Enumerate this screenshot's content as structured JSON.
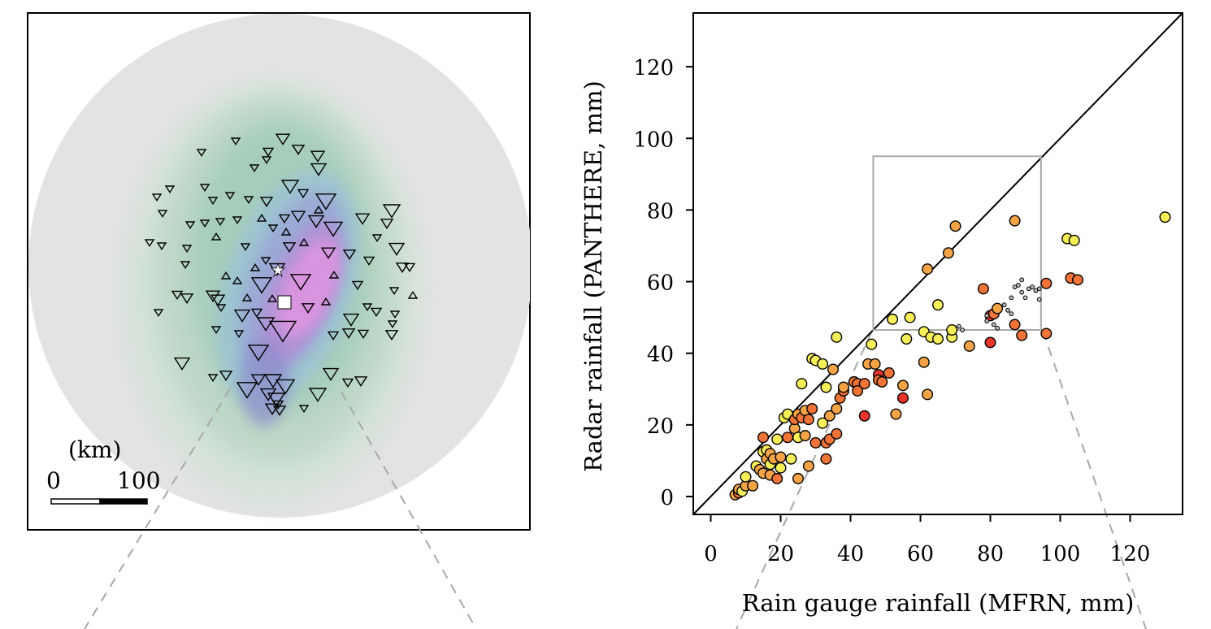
{
  "map_panel": {
    "scale_unit": "(km)",
    "scale_start": "0",
    "scale_end": "100",
    "station_marker_color": "#000000",
    "background_color": "#e3e3e3"
  },
  "chart_data": {
    "type": "scatter",
    "title": "",
    "xlabel": "Rain gauge rainfall (MFRN, mm)",
    "ylabel": "Radar rainfall (PANTHERE, mm)",
    "xlim": [
      -5,
      135
    ],
    "ylim": [
      -5,
      135
    ],
    "xticks": [
      0,
      20,
      40,
      60,
      80,
      100,
      120
    ],
    "yticks": [
      0,
      20,
      40,
      60,
      80,
      100,
      120
    ],
    "grid": false,
    "reference_line": "1:1",
    "zoom_box": {
      "x": [
        46.5,
        94.5
      ],
      "y": [
        46.5,
        95
      ]
    },
    "colors": {
      "yellow": "#f7ef5a",
      "orange": "#f4a447",
      "dark_orange": "#f07338",
      "red": "#e8342a",
      "small_points": "#bdbdbd"
    },
    "points": [
      {
        "x": 7,
        "y": 0.5,
        "c": "orange"
      },
      {
        "x": 8,
        "y": 1,
        "c": "dark_orange"
      },
      {
        "x": 8,
        "y": 2,
        "c": "orange"
      },
      {
        "x": 9,
        "y": 1.5,
        "c": "yellow"
      },
      {
        "x": 10,
        "y": 3,
        "c": "orange"
      },
      {
        "x": 10,
        "y": 5.5,
        "c": "yellow"
      },
      {
        "x": 12,
        "y": 3,
        "c": "orange"
      },
      {
        "x": 13,
        "y": 8.5,
        "c": "yellow"
      },
      {
        "x": 14,
        "y": 7.5,
        "c": "orange"
      },
      {
        "x": 15,
        "y": 6.5,
        "c": "orange"
      },
      {
        "x": 15,
        "y": 12.5,
        "c": "yellow"
      },
      {
        "x": 15,
        "y": 16.5,
        "c": "dark_orange"
      },
      {
        "x": 16,
        "y": 10.5,
        "c": "orange"
      },
      {
        "x": 16,
        "y": 13,
        "c": "yellow"
      },
      {
        "x": 17,
        "y": 6,
        "c": "orange"
      },
      {
        "x": 17,
        "y": 9,
        "c": "yellow"
      },
      {
        "x": 17,
        "y": 12,
        "c": "orange"
      },
      {
        "x": 18,
        "y": 10.5,
        "c": "orange"
      },
      {
        "x": 19,
        "y": 5,
        "c": "dark_orange"
      },
      {
        "x": 19,
        "y": 16,
        "c": "yellow"
      },
      {
        "x": 20,
        "y": 8,
        "c": "yellow"
      },
      {
        "x": 20,
        "y": 11,
        "c": "orange"
      },
      {
        "x": 21,
        "y": 22,
        "c": "yellow"
      },
      {
        "x": 22,
        "y": 16.5,
        "c": "dark_orange"
      },
      {
        "x": 22,
        "y": 23,
        "c": "yellow"
      },
      {
        "x": 23,
        "y": 10.5,
        "c": "yellow"
      },
      {
        "x": 24,
        "y": 19,
        "c": "orange"
      },
      {
        "x": 24,
        "y": 21.5,
        "c": "dark_orange"
      },
      {
        "x": 25,
        "y": 16.5,
        "c": "yellow"
      },
      {
        "x": 25,
        "y": 5,
        "c": "orange"
      },
      {
        "x": 25,
        "y": 23,
        "c": "orange"
      },
      {
        "x": 26,
        "y": 22,
        "c": "dark_orange"
      },
      {
        "x": 26,
        "y": 31.5,
        "c": "yellow"
      },
      {
        "x": 27,
        "y": 24,
        "c": "orange"
      },
      {
        "x": 27,
        "y": 17,
        "c": "orange"
      },
      {
        "x": 28,
        "y": 21.5,
        "c": "dark_orange"
      },
      {
        "x": 28,
        "y": 8.5,
        "c": "orange"
      },
      {
        "x": 29,
        "y": 24.5,
        "c": "dark_orange"
      },
      {
        "x": 29,
        "y": 38.5,
        "c": "yellow"
      },
      {
        "x": 30,
        "y": 15,
        "c": "dark_orange"
      },
      {
        "x": 30,
        "y": 38,
        "c": "yellow"
      },
      {
        "x": 32,
        "y": 20.5,
        "c": "yellow"
      },
      {
        "x": 32,
        "y": 37,
        "c": "yellow"
      },
      {
        "x": 33,
        "y": 15,
        "c": "dark_orange"
      },
      {
        "x": 33,
        "y": 30.5,
        "c": "yellow"
      },
      {
        "x": 33,
        "y": 10.5,
        "c": "dark_orange"
      },
      {
        "x": 34,
        "y": 16,
        "c": "dark_orange"
      },
      {
        "x": 34,
        "y": 22.5,
        "c": "orange"
      },
      {
        "x": 35,
        "y": 35.5,
        "c": "orange"
      },
      {
        "x": 36,
        "y": 17.5,
        "c": "dark_orange"
      },
      {
        "x": 36,
        "y": 24.5,
        "c": "orange"
      },
      {
        "x": 36,
        "y": 44.5,
        "c": "yellow"
      },
      {
        "x": 37,
        "y": 27.5,
        "c": "dark_orange"
      },
      {
        "x": 38,
        "y": 29.5,
        "c": "dark_orange"
      },
      {
        "x": 38,
        "y": 30.5,
        "c": "orange"
      },
      {
        "x": 41,
        "y": 32,
        "c": "dark_orange"
      },
      {
        "x": 42,
        "y": 31.5,
        "c": "dark_orange"
      },
      {
        "x": 42,
        "y": 29.5,
        "c": "dark_orange"
      },
      {
        "x": 44,
        "y": 22.5,
        "c": "red"
      },
      {
        "x": 44,
        "y": 31.5,
        "c": "dark_orange"
      },
      {
        "x": 45,
        "y": 37,
        "c": "orange"
      },
      {
        "x": 46,
        "y": 42.5,
        "c": "yellow"
      },
      {
        "x": 47,
        "y": 37,
        "c": "orange"
      },
      {
        "x": 48,
        "y": 34,
        "c": "red"
      },
      {
        "x": 48,
        "y": 32.5,
        "c": "dark_orange"
      },
      {
        "x": 49,
        "y": 32,
        "c": "dark_orange"
      },
      {
        "x": 51,
        "y": 34.5,
        "c": "dark_orange"
      },
      {
        "x": 52,
        "y": 49.5,
        "c": "yellow"
      },
      {
        "x": 53,
        "y": 23,
        "c": "orange"
      },
      {
        "x": 55,
        "y": 27.5,
        "c": "red"
      },
      {
        "x": 55,
        "y": 31,
        "c": "orange"
      },
      {
        "x": 56,
        "y": 44,
        "c": "yellow"
      },
      {
        "x": 57,
        "y": 50,
        "c": "yellow"
      },
      {
        "x": 61,
        "y": 37.5,
        "c": "orange"
      },
      {
        "x": 61,
        "y": 46,
        "c": "yellow"
      },
      {
        "x": 62,
        "y": 28.5,
        "c": "orange"
      },
      {
        "x": 62,
        "y": 63.5,
        "c": "orange"
      },
      {
        "x": 63,
        "y": 44.5,
        "c": "yellow"
      },
      {
        "x": 65,
        "y": 53.5,
        "c": "yellow"
      },
      {
        "x": 65,
        "y": 44,
        "c": "yellow"
      },
      {
        "x": 68,
        "y": 68,
        "c": "orange"
      },
      {
        "x": 69,
        "y": 44.5,
        "c": "yellow"
      },
      {
        "x": 69,
        "y": 46.5,
        "c": "yellow"
      },
      {
        "x": 70,
        "y": 75.5,
        "c": "orange"
      },
      {
        "x": 74,
        "y": 42,
        "c": "orange"
      },
      {
        "x": 78,
        "y": 58,
        "c": "dark_orange"
      },
      {
        "x": 80,
        "y": 43,
        "c": "red"
      },
      {
        "x": 80,
        "y": 50.5,
        "c": "red"
      },
      {
        "x": 81,
        "y": 51,
        "c": "dark_orange"
      },
      {
        "x": 82,
        "y": 52.5,
        "c": "orange"
      },
      {
        "x": 87,
        "y": 77,
        "c": "orange"
      },
      {
        "x": 87,
        "y": 48,
        "c": "dark_orange"
      },
      {
        "x": 89,
        "y": 45,
        "c": "dark_orange"
      },
      {
        "x": 96,
        "y": 59.5,
        "c": "dark_orange"
      },
      {
        "x": 96,
        "y": 45.5,
        "c": "dark_orange"
      },
      {
        "x": 102,
        "y": 72,
        "c": "yellow"
      },
      {
        "x": 103,
        "y": 61,
        "c": "dark_orange"
      },
      {
        "x": 104,
        "y": 71.5,
        "c": "yellow"
      },
      {
        "x": 105,
        "y": 60.5,
        "c": "dark_orange"
      },
      {
        "x": 130,
        "y": 78,
        "c": "yellow"
      }
    ],
    "small_points": [
      {
        "x": 71,
        "y": 47.5
      },
      {
        "x": 72,
        "y": 46.5
      },
      {
        "x": 79,
        "y": 49
      },
      {
        "x": 79,
        "y": 50.5
      },
      {
        "x": 81,
        "y": 48
      },
      {
        "x": 82,
        "y": 47
      },
      {
        "x": 84,
        "y": 53.5
      },
      {
        "x": 85,
        "y": 52
      },
      {
        "x": 86,
        "y": 55.5
      },
      {
        "x": 87,
        "y": 58.5
      },
      {
        "x": 88,
        "y": 59
      },
      {
        "x": 89,
        "y": 57
      },
      {
        "x": 89,
        "y": 60.5
      },
      {
        "x": 91,
        "y": 58
      },
      {
        "x": 92,
        "y": 58.5
      },
      {
        "x": 93,
        "y": 57.5
      },
      {
        "x": 94,
        "y": 58
      },
      {
        "x": 94,
        "y": 55
      },
      {
        "x": 86,
        "y": 51
      },
      {
        "x": 90,
        "y": 55.5
      }
    ]
  }
}
